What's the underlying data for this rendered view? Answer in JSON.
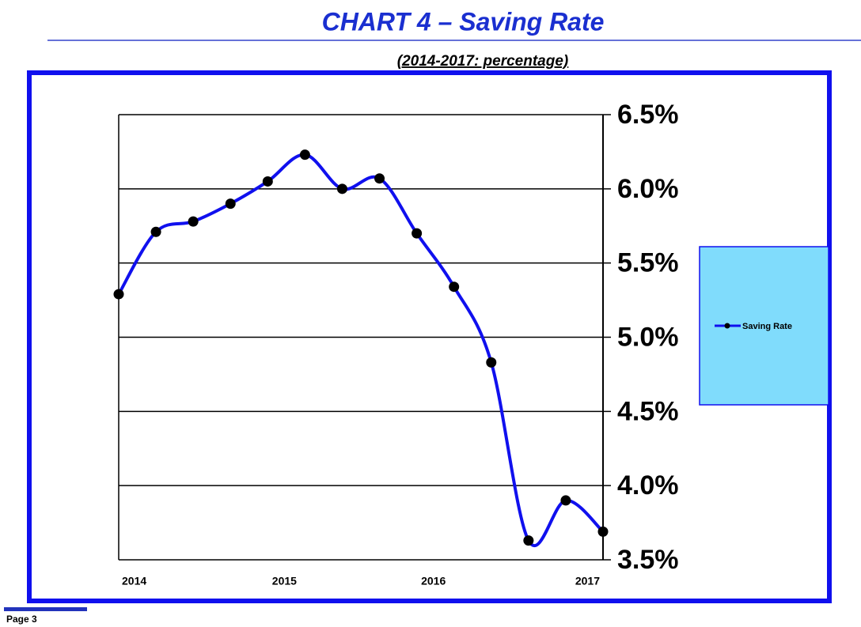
{
  "chart_data": {
    "type": "line",
    "title": "CHART 4 – Saving Rate",
    "subtitle": "(2014-2017: percentage)",
    "categories": [
      "2014",
      null,
      null,
      null,
      null,
      "2015",
      null,
      null,
      null,
      "2016",
      null,
      null,
      null,
      "2017"
    ],
    "series": [
      {
        "name": "Saving Rate",
        "color": "#1010ee",
        "values": [
          5.29,
          5.71,
          5.78,
          5.9,
          6.05,
          6.23,
          6.0,
          6.07,
          5.7,
          5.34,
          4.83,
          3.63,
          3.9,
          3.69
        ]
      }
    ],
    "ylim": [
      3.5,
      6.5
    ],
    "yticks": [
      {
        "value": 3.5,
        "label": "3.5%"
      },
      {
        "value": 4.0,
        "label": "4.0%"
      },
      {
        "value": 4.5,
        "label": "4.5%"
      },
      {
        "value": 5.0,
        "label": "5.0%"
      },
      {
        "value": 5.5,
        "label": "5.5%"
      },
      {
        "value": 6.0,
        "label": "6.0%"
      },
      {
        "value": 6.5,
        "label": "6.5%"
      }
    ],
    "grid": true,
    "legend": "right"
  },
  "footer": "Page 3"
}
